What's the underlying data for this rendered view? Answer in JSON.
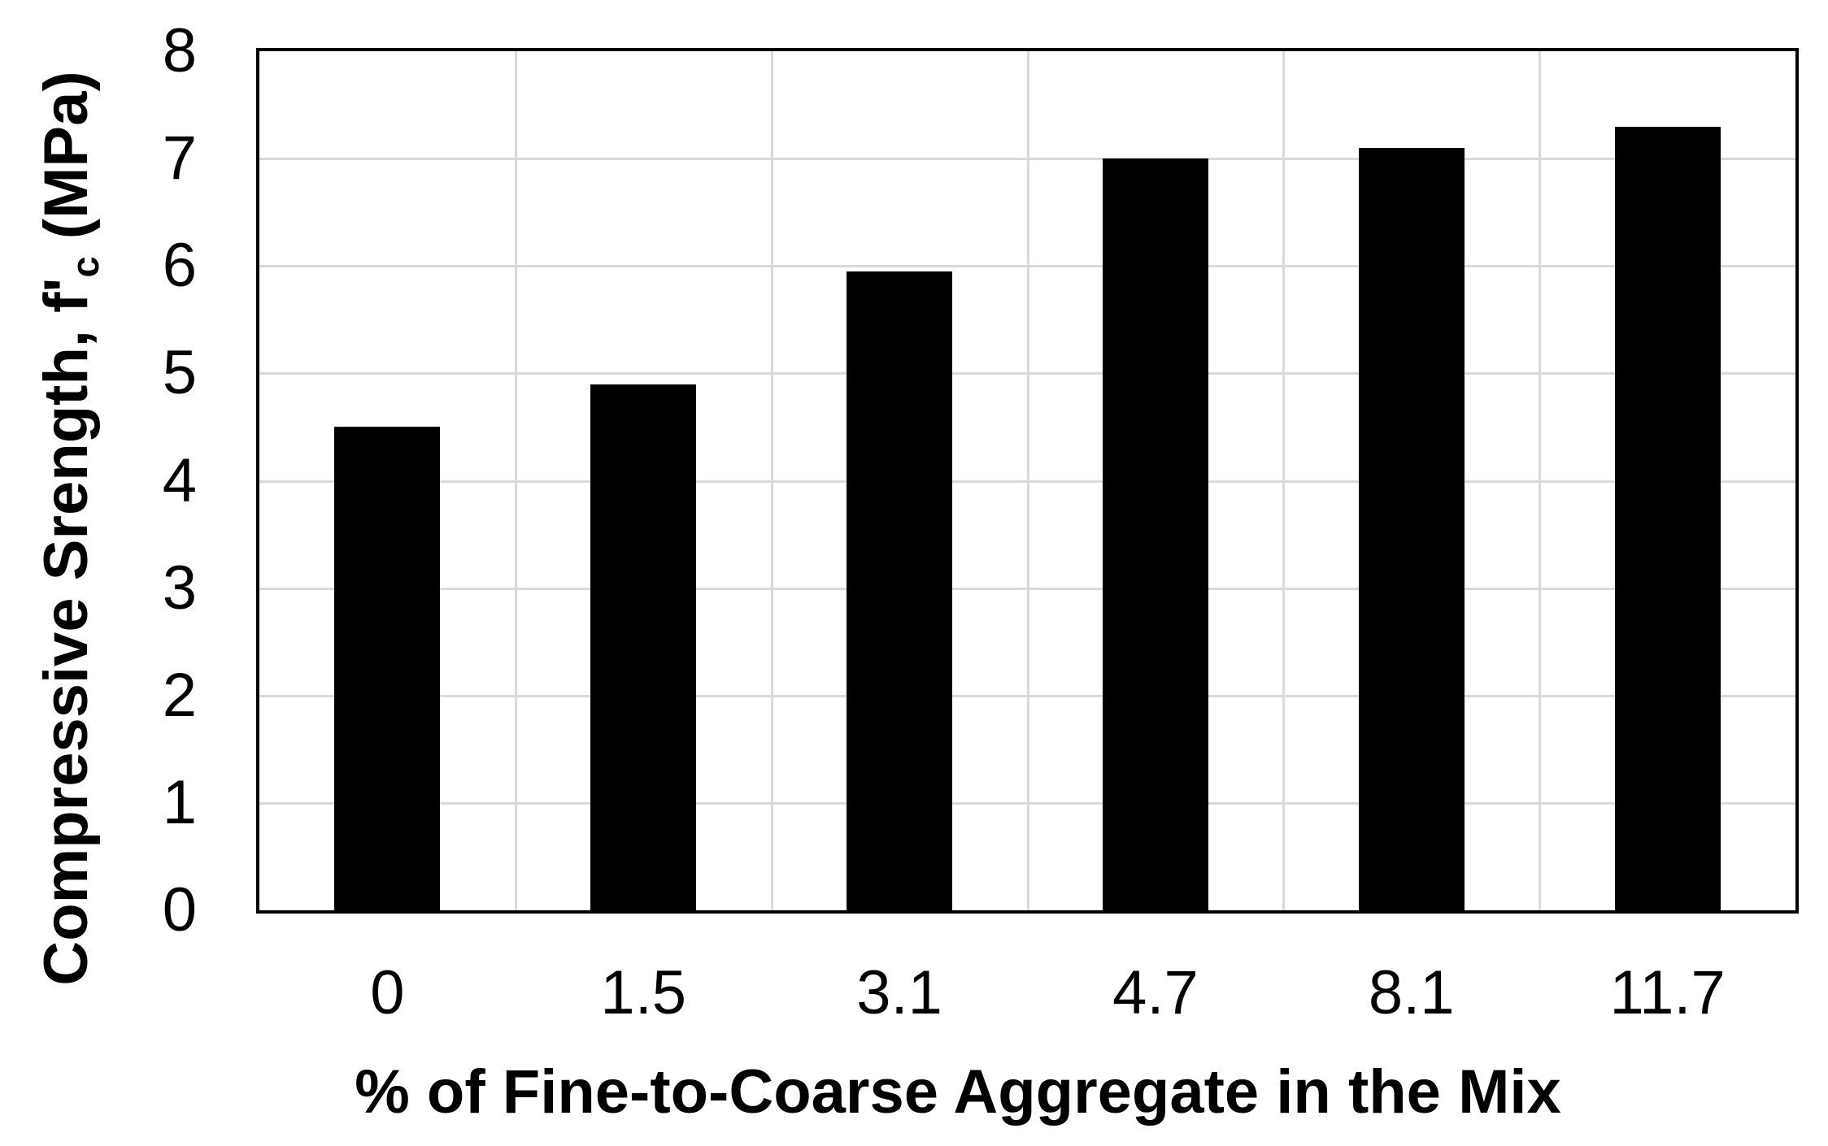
{
  "chart_data": {
    "type": "bar",
    "title": "",
    "categories": [
      "0",
      "1.5",
      "3.1",
      "4.7",
      "8.1",
      "11.7"
    ],
    "values": [
      4.5,
      4.9,
      5.95,
      7.0,
      7.1,
      7.3
    ],
    "xlabel": "% of Fine-to-Coarse Aggregate in the Mix",
    "ylabel": "Compressive Srength, f'c (MPa)",
    "ylabel_parts": {
      "prefix": "Compressive Srength, f'",
      "subscript": "c",
      "suffix": " (MPa)"
    },
    "ylim": [
      0,
      8
    ],
    "yticks": [
      0,
      1,
      2,
      3,
      4,
      5,
      6,
      7,
      8
    ],
    "grid": {
      "horizontal": true,
      "vertical": true
    },
    "legend": "none",
    "colors": {
      "bar": "#000000",
      "grid": "#d9d9d9",
      "axis_border": "#000000",
      "text": "#000000",
      "background": "#ffffff"
    }
  }
}
